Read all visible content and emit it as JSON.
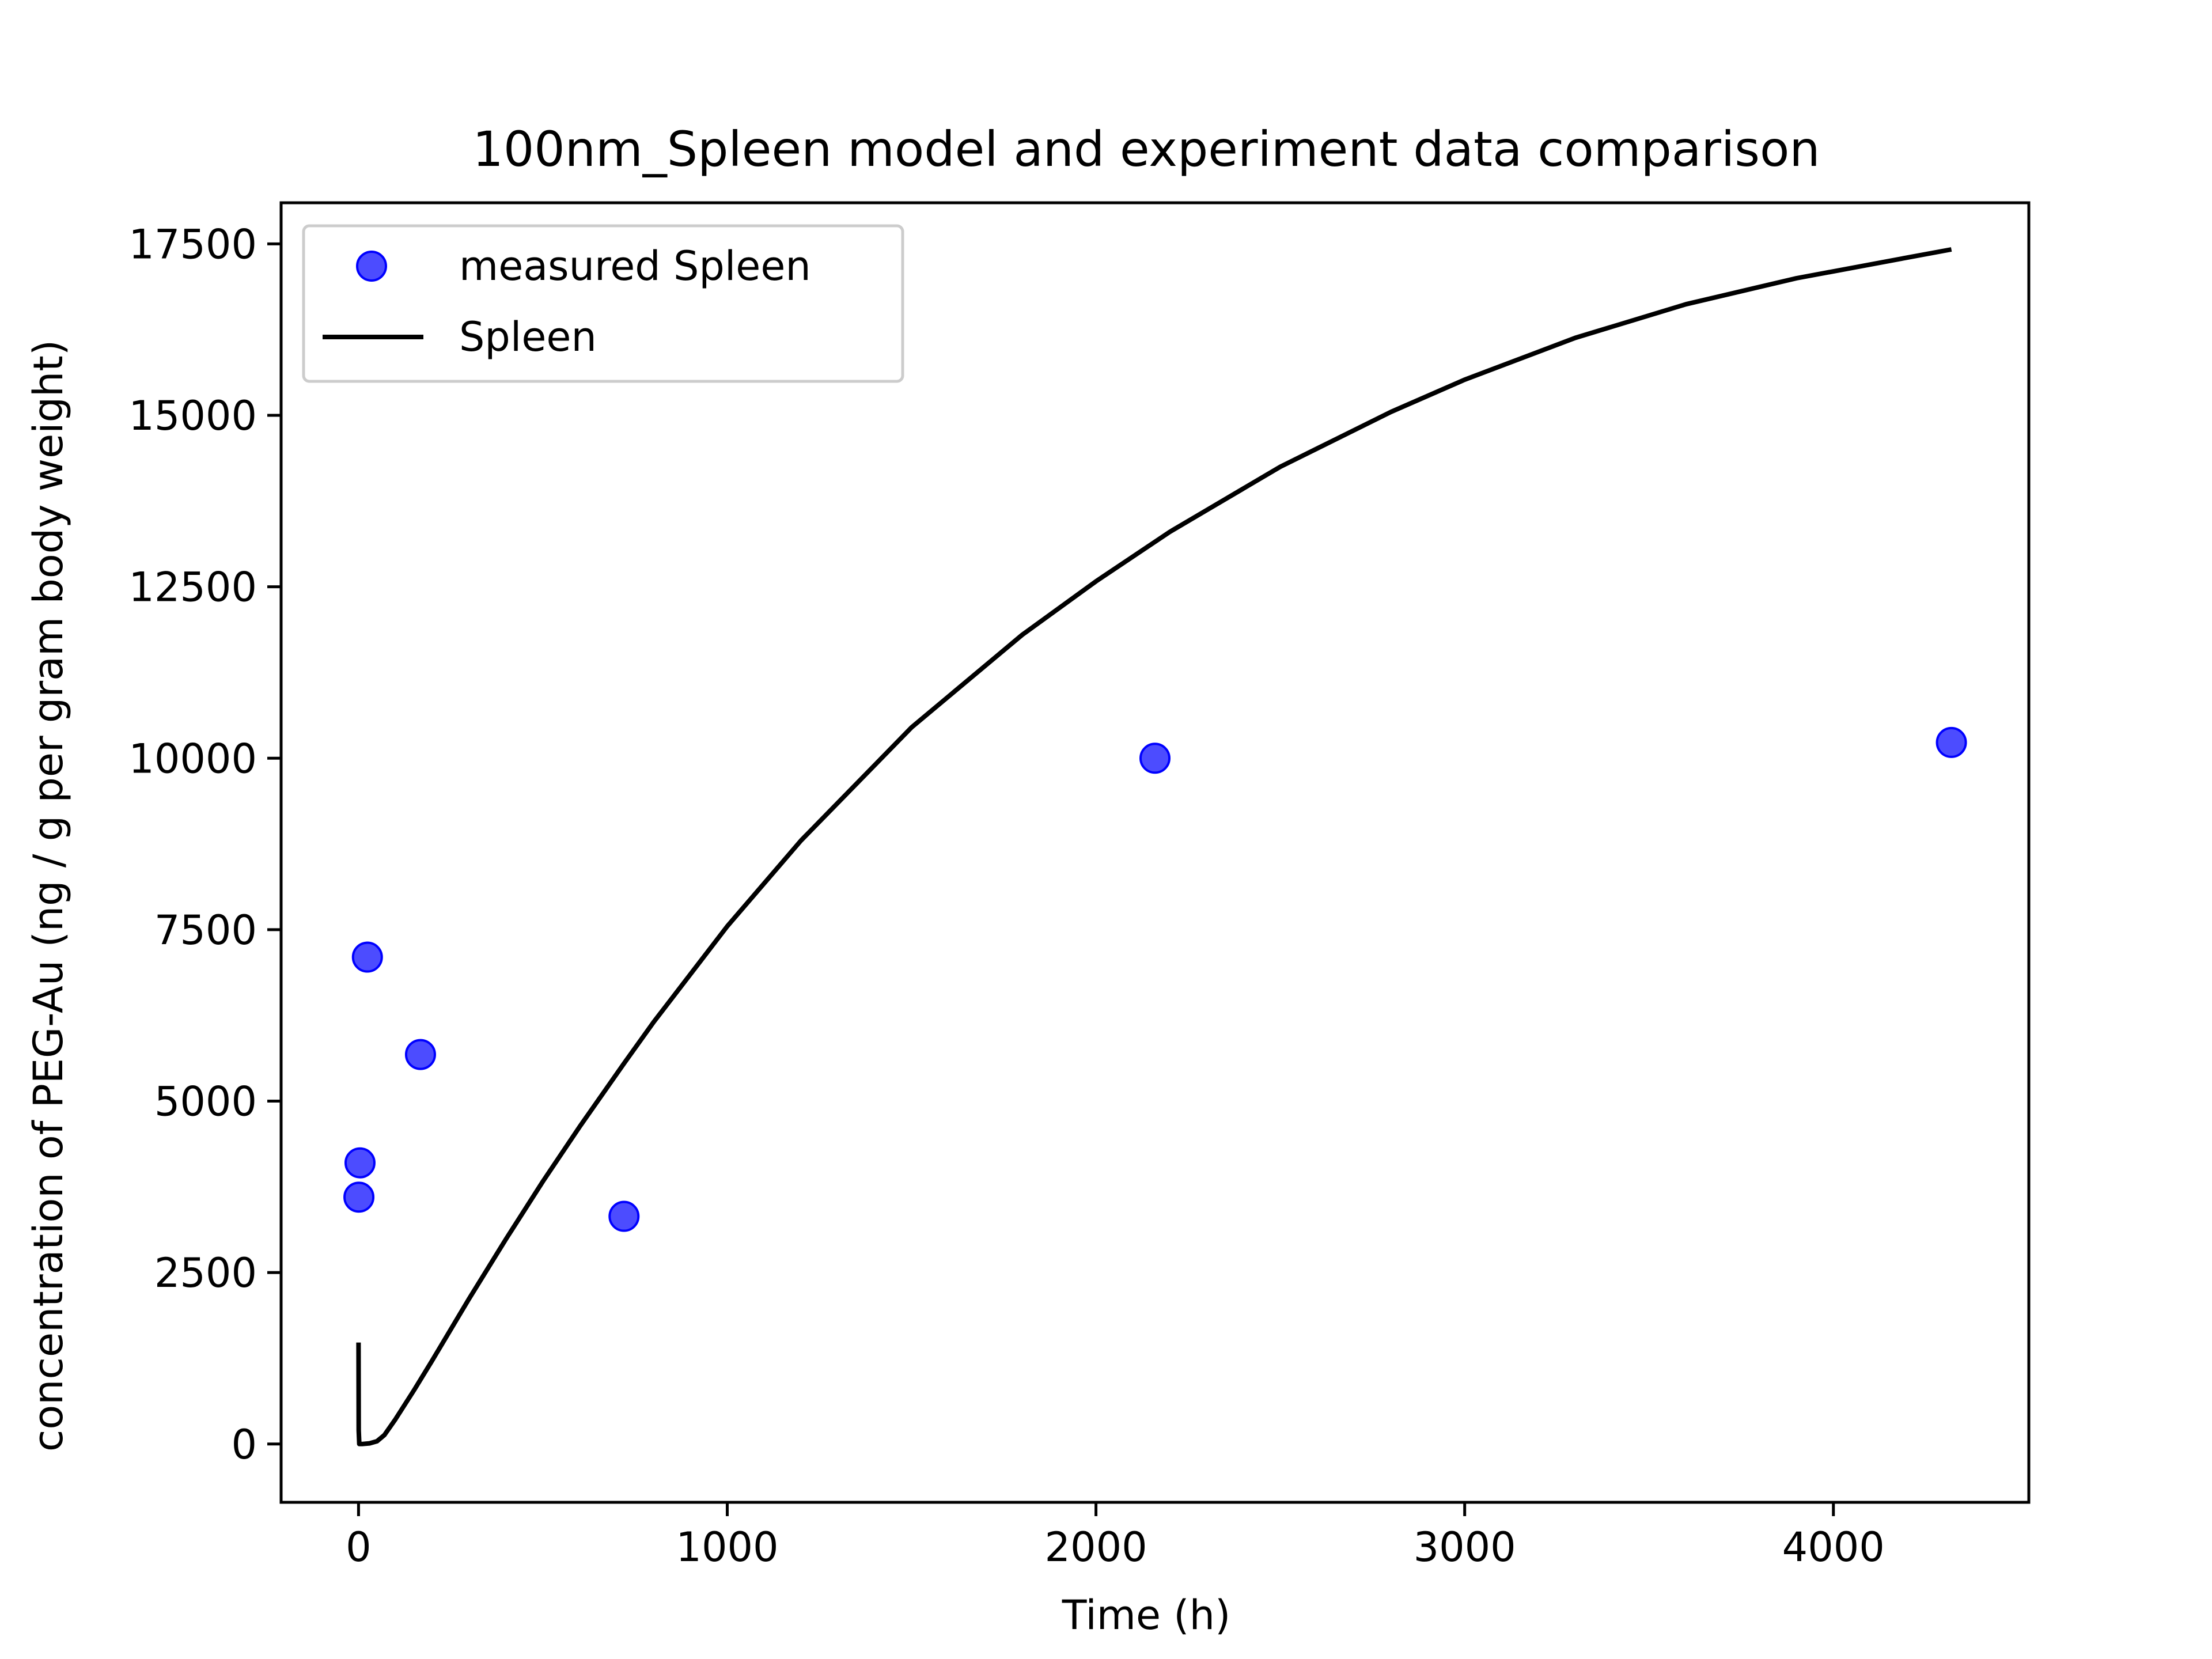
{
  "chart_data": {
    "type": "scatter",
    "title": "100nm_Spleen model and experiment data comparison",
    "xlabel": "Time (h)",
    "ylabel": "concentration of PEG-Au (ng / g per gram body weight)",
    "xlim": [
      -210,
      4530
    ],
    "ylim": [
      -850,
      18100
    ],
    "x_ticks": [
      0,
      1000,
      2000,
      3000,
      4000
    ],
    "y_ticks": [
      0,
      2500,
      5000,
      7500,
      10000,
      12500,
      15000,
      17500
    ],
    "x_tick_labels": [
      "0",
      "1000",
      "2000",
      "3000",
      "4000"
    ],
    "y_tick_labels": [
      "0",
      "2500",
      "5000",
      "7500",
      "10000",
      "12500",
      "15000",
      "17500"
    ],
    "legend_position": "upper-left",
    "grid": false,
    "series": [
      {
        "name": "measured Spleen",
        "kind": "scatter",
        "color": "#0000ff",
        "x": [
          1,
          4,
          24,
          168,
          720,
          2160,
          4320
        ],
        "y": [
          3600,
          4100,
          7100,
          5680,
          3320,
          10000,
          10230
        ]
      },
      {
        "name": "Spleen",
        "kind": "line",
        "color": "#000000",
        "x": [
          0,
          0.5,
          2,
          10,
          30,
          50,
          70,
          100,
          150,
          200,
          300,
          400,
          500,
          600,
          720,
          800,
          1000,
          1200,
          1500,
          1800,
          2000,
          2200,
          2500,
          2800,
          3000,
          3300,
          3600,
          3900,
          4200,
          4320
        ],
        "y": [
          1480,
          200,
          0,
          0,
          10,
          40,
          130,
          360,
          780,
          1220,
          2120,
          2990,
          3830,
          4630,
          5550,
          6150,
          7550,
          8800,
          10450,
          11800,
          12580,
          13300,
          14250,
          15050,
          15520,
          16130,
          16620,
          17000,
          17300,
          17420
        ]
      }
    ]
  }
}
